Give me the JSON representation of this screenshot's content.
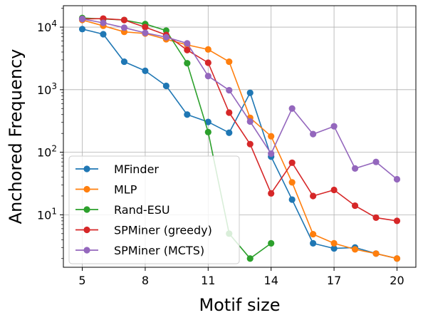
{
  "chart_data": {
    "type": "line",
    "title": "",
    "xlabel": "Motif size",
    "ylabel": "Anchored Frequency",
    "xscale": "linear",
    "yscale": "log",
    "xlim": [
      4.1,
      20.9
    ],
    "ylim": [
      1.45,
      22000
    ],
    "xticks": [
      5,
      8,
      11,
      14,
      17,
      20
    ],
    "yticks": [
      {
        "value": 10,
        "base": "10",
        "exp": "1"
      },
      {
        "value": 100,
        "base": "10",
        "exp": "2"
      },
      {
        "value": 1000,
        "base": "10",
        "exp": "3"
      },
      {
        "value": 10000,
        "base": "10",
        "exp": "4"
      }
    ],
    "grid": true,
    "legend_position": "lower-left",
    "series": [
      {
        "name": "MFinder",
        "color": "#1f77b4",
        "x": [
          5,
          6,
          7,
          8,
          9,
          10,
          11,
          12,
          13,
          14,
          15,
          16,
          17,
          18,
          19,
          20
        ],
        "y": [
          9300,
          7700,
          2800,
          2000,
          1150,
          400,
          305,
          205,
          890,
          85,
          17.5,
          3.5,
          2.9,
          3.0,
          2.4,
          2.0
        ]
      },
      {
        "name": "MLP",
        "color": "#ff7f0e",
        "x": [
          5,
          6,
          7,
          8,
          9,
          10,
          11,
          12,
          13,
          14,
          15,
          16,
          17,
          18,
          19,
          20
        ],
        "y": [
          13000,
          10500,
          8400,
          7900,
          6400,
          5200,
          4400,
          2800,
          355,
          180,
          33,
          4.9,
          3.5,
          2.8,
          2.4,
          2.0
        ]
      },
      {
        "name": "Rand-ESU",
        "color": "#2ca02c",
        "x": [
          5,
          6,
          7,
          8,
          9,
          10,
          11,
          12,
          13,
          14
        ],
        "y": [
          14000,
          13500,
          13000,
          11200,
          8800,
          2650,
          210,
          5.0,
          2.0,
          3.5
        ]
      },
      {
        "name": "SPMiner (greedy)",
        "color": "#d62728",
        "x": [
          5,
          6,
          7,
          8,
          9,
          10,
          11,
          12,
          13,
          14,
          15,
          16,
          17,
          18,
          19,
          20
        ],
        "y": [
          13500,
          13700,
          13000,
          10000,
          7500,
          4300,
          2700,
          430,
          135,
          22,
          68,
          20,
          25,
          14,
          9,
          8
        ]
      },
      {
        "name": "SPMiner (MCTS)",
        "color": "#9467bd",
        "x": [
          5,
          6,
          7,
          8,
          9,
          10,
          11,
          12,
          13,
          14,
          15,
          16,
          17,
          18,
          19,
          20
        ],
        "y": [
          13500,
          11700,
          9800,
          8100,
          6900,
          5500,
          1650,
          980,
          310,
          95,
          500,
          195,
          260,
          55,
          70,
          37
        ]
      }
    ]
  }
}
